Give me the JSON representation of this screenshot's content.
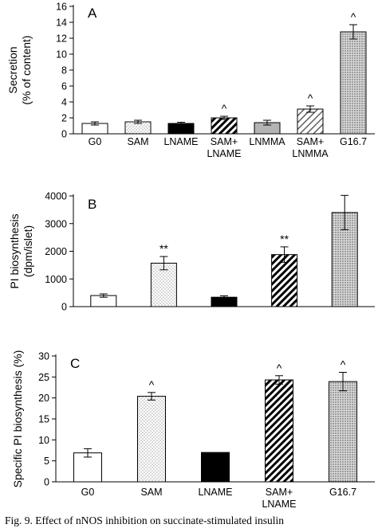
{
  "caption": "Fig. 9.  Effect of nNOS inhibition on succinate-stimulated insulin",
  "chart_data": [
    {
      "panel": "A",
      "type": "bar",
      "ylabel": [
        "Secretion",
        "(% of content)"
      ],
      "ylim": [
        0,
        16
      ],
      "yticks": [
        0,
        2,
        4,
        6,
        8,
        10,
        12,
        14,
        16
      ],
      "categories": [
        [
          "G0"
        ],
        [
          "SAM"
        ],
        [
          "LNAME"
        ],
        [
          "SAM+",
          "LNAME"
        ],
        [
          "LNMMA"
        ],
        [
          "SAM+",
          "LNMMA"
        ],
        [
          "G16.7"
        ]
      ],
      "values": [
        1.3,
        1.5,
        1.3,
        2.0,
        1.4,
        3.1,
        12.8
      ],
      "errors": [
        0.2,
        0.2,
        0.15,
        0.2,
        0.3,
        0.4,
        0.9
      ],
      "fills": [
        "white",
        "dots",
        "black",
        "hatch",
        "gray",
        "hatch-light",
        "dots-dense"
      ],
      "annotations": [
        "",
        "",
        "",
        "^",
        "",
        "^",
        "^"
      ]
    },
    {
      "panel": "B",
      "type": "bar",
      "ylabel": [
        "PI biosynthesis",
        "(dpm/islet)"
      ],
      "ylim": [
        0,
        4000
      ],
      "yticks": [
        0,
        1000,
        2000,
        3000,
        4000
      ],
      "categories": [
        [
          "G0"
        ],
        [
          "SAM"
        ],
        [
          "LNAME"
        ],
        [
          "SAM+",
          "LNAME"
        ],
        [
          "G16.7"
        ]
      ],
      "values": [
        400,
        1570,
        340,
        1880,
        3400
      ],
      "errors": [
        60,
        240,
        50,
        280,
        620
      ],
      "fills": [
        "white",
        "dots",
        "black",
        "hatch",
        "dots-dense"
      ],
      "annotations": [
        "",
        "**",
        "",
        "**",
        ""
      ]
    },
    {
      "panel": "C",
      "type": "bar",
      "ylabel": [
        "Specific PI biosynthesis (%)"
      ],
      "ylim": [
        0,
        30
      ],
      "yticks": [
        0,
        5,
        10,
        15,
        20,
        25,
        30
      ],
      "categories": [
        [
          "G0"
        ],
        [
          "SAM"
        ],
        [
          "LNAME"
        ],
        [
          "SAM+",
          "LNAME"
        ],
        [
          "G16.7"
        ]
      ],
      "values": [
        6.9,
        20.4,
        7.0,
        24.3,
        23.9
      ],
      "errors": [
        1.0,
        0.9,
        0,
        1.0,
        2.2
      ],
      "fills": [
        "white",
        "dots",
        "black",
        "hatch",
        "dots-dense"
      ],
      "annotations": [
        "",
        "^",
        "",
        "^",
        "^"
      ]
    }
  ]
}
